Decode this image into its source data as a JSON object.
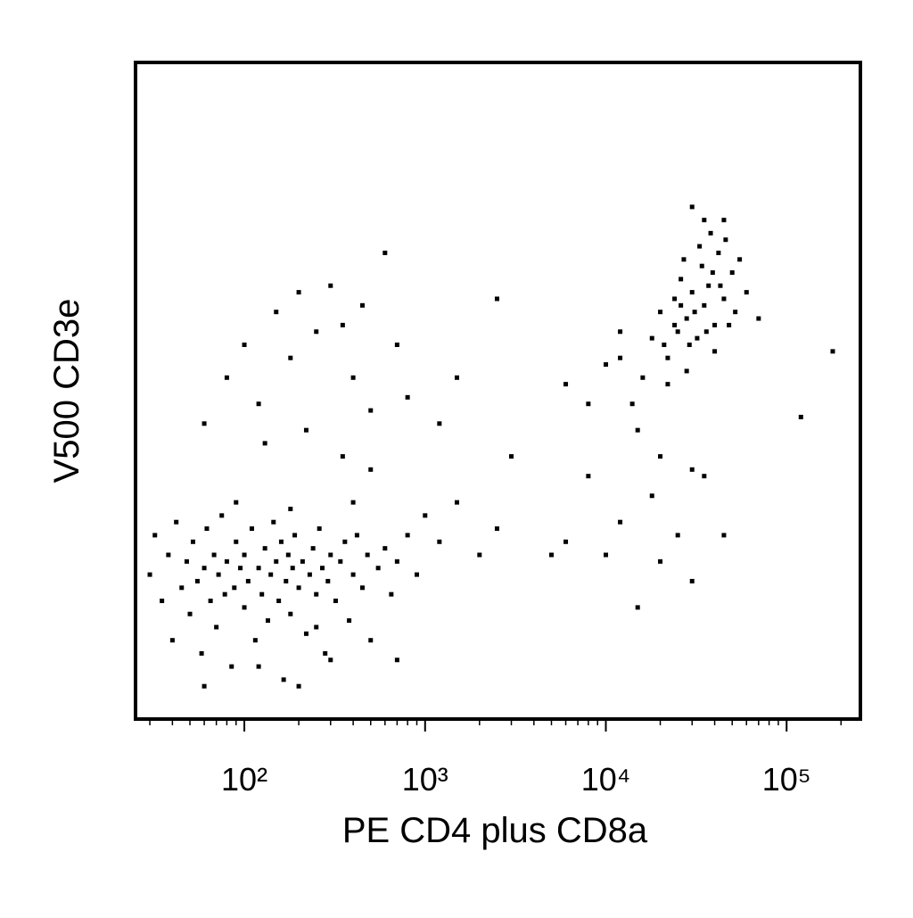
{
  "chart_data": {
    "type": "scatter",
    "xlabel": "PE CD4 plus CD8a",
    "ylabel": "V500 CD3e",
    "xscale": "log",
    "color": "#000000",
    "xlim": [
      25,
      256000
    ],
    "ylim": [
      0,
      100
    ],
    "xticks": [
      {
        "value": 100,
        "label": "10²"
      },
      {
        "value": 1000,
        "label": "10³"
      },
      {
        "value": 10000,
        "label": "10⁴"
      },
      {
        "value": 100000,
        "label": "10⁵"
      }
    ],
    "xminorticks": [
      30,
      40,
      50,
      60,
      70,
      80,
      90,
      200,
      300,
      400,
      500,
      600,
      700,
      800,
      900,
      2000,
      3000,
      4000,
      5000,
      6000,
      7000,
      8000,
      9000,
      20000,
      30000,
      40000,
      50000,
      60000,
      70000,
      80000,
      90000,
      200000
    ],
    "x": [
      30,
      32,
      35,
      38,
      40,
      42,
      45,
      48,
      50,
      52,
      55,
      58,
      60,
      62,
      65,
      68,
      70,
      72,
      75,
      78,
      80,
      85,
      88,
      90,
      95,
      100,
      100,
      105,
      110,
      115,
      120,
      125,
      130,
      135,
      140,
      145,
      150,
      155,
      160,
      165,
      170,
      175,
      180,
      185,
      190,
      200,
      210,
      220,
      230,
      240,
      250,
      260,
      270,
      280,
      290,
      300,
      320,
      340,
      360,
      380,
      400,
      420,
      450,
      480,
      500,
      550,
      600,
      650,
      700,
      800,
      900,
      1000,
      1200,
      1500,
      2000,
      2500,
      120,
      200,
      300,
      60,
      250,
      180,
      90,
      400,
      700,
      60,
      80,
      100,
      120,
      150,
      180,
      200,
      250,
      300,
      350,
      400,
      450,
      500,
      600,
      700,
      800,
      130,
      220,
      350,
      500,
      1200,
      1500,
      2500,
      3000,
      5000,
      6000,
      8000,
      10000,
      12000,
      15000,
      18000,
      20000,
      25000,
      30000,
      35000,
      45000,
      70000,
      120000,
      180000,
      8000,
      10000,
      12000,
      6000,
      15000,
      20000,
      30000,
      18000,
      20000,
      22000,
      24000,
      25000,
      26000,
      28000,
      30000,
      32000,
      34000,
      35000,
      37000,
      40000,
      42000,
      45000,
      50000,
      22000,
      28000,
      33000,
      38000,
      40000,
      48000,
      55000,
      60000,
      16000,
      14000,
      12000,
      27000,
      31000,
      36000,
      29000,
      43000,
      24000,
      26000,
      21000,
      39000,
      46000,
      52000,
      30000,
      35000,
      45000
    ],
    "values": [
      22,
      28,
      18,
      25,
      12,
      30,
      20,
      24,
      16,
      27,
      21,
      10,
      23,
      29,
      18,
      25,
      14,
      22,
      31,
      19,
      24,
      8,
      20,
      27,
      23,
      17,
      25,
      21,
      29,
      12,
      23,
      19,
      26,
      15,
      22,
      30,
      24,
      18,
      27,
      6,
      21,
      25,
      16,
      23,
      28,
      20,
      24,
      13,
      22,
      26,
      19,
      29,
      23,
      10,
      21,
      25,
      18,
      24,
      27,
      15,
      22,
      28,
      20,
      25,
      12,
      23,
      26,
      19,
      24,
      28,
      22,
      31,
      27,
      33,
      25,
      29,
      8,
      5,
      9,
      5,
      14,
      32,
      33,
      33,
      9,
      45,
      52,
      57,
      48,
      62,
      55,
      65,
      59,
      66,
      60,
      52,
      63,
      47,
      71,
      57,
      49,
      42,
      44,
      40,
      38,
      45,
      52,
      64,
      40,
      25,
      27,
      37,
      25,
      30,
      17,
      34,
      24,
      28,
      21,
      37,
      28,
      61,
      46,
      56,
      48,
      54,
      59,
      51,
      44,
      40,
      38,
      58,
      62,
      55,
      64,
      59,
      67,
      61,
      65,
      58,
      69,
      63,
      66,
      60,
      71,
      64,
      68,
      51,
      53,
      72,
      74,
      56,
      60,
      70,
      65,
      52,
      48,
      55,
      70,
      62,
      59,
      57,
      66,
      60,
      63,
      57,
      68,
      73,
      62,
      78,
      76,
      76
    ]
  }
}
